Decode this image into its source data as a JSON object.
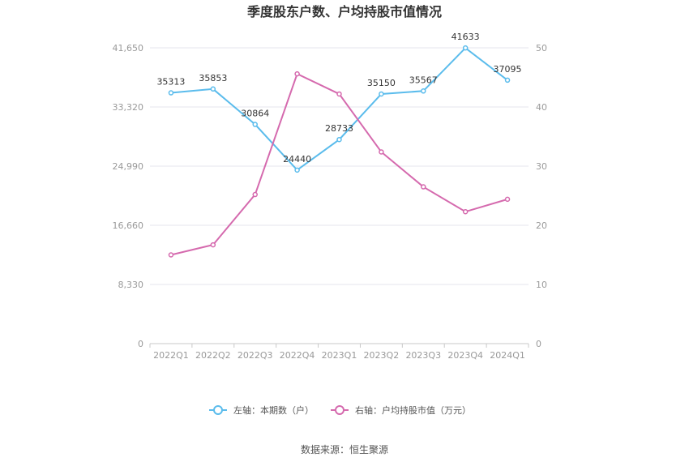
{
  "chart_data": {
    "type": "line",
    "title": "季度股东户数、户均持股市值情况",
    "categories": [
      "2022Q1",
      "2022Q2",
      "2022Q3",
      "2022Q4",
      "2023Q1",
      "2023Q2",
      "2023Q3",
      "2023Q4",
      "2024Q1"
    ],
    "left_axis": {
      "min": 0,
      "max": 41650,
      "ticks": [
        "0",
        "8,330",
        "16,660",
        "24,990",
        "33,320",
        "41,650"
      ]
    },
    "right_axis": {
      "min": 0,
      "max": 50,
      "ticks": [
        "0",
        "10",
        "20",
        "30",
        "40",
        "50"
      ]
    },
    "series": [
      {
        "name": "左轴：本期数（户）",
        "axis": "left",
        "color": "#5bbcec",
        "values": [
          35313,
          35853,
          30864,
          24440,
          28733,
          35150,
          35567,
          41633,
          37095
        ],
        "labels": [
          "35313",
          "35853",
          "30864",
          "24440",
          "28733",
          "35150",
          "35567",
          "41633",
          "37095"
        ]
      },
      {
        "name": "右轴：户均持股市值（万元）",
        "axis": "right",
        "color": "#d56aae",
        "values": [
          15.0,
          16.7,
          25.2,
          45.6,
          42.2,
          32.4,
          26.5,
          22.3,
          24.4
        ]
      }
    ],
    "grid": true,
    "legend_position": "bottom"
  },
  "source": "数据来源：恒生聚源"
}
